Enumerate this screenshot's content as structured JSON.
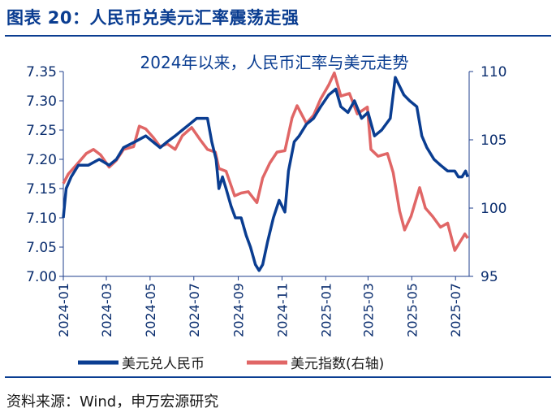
{
  "figure": {
    "title": "图表 20：人民币兑美元汇率震荡走强",
    "source": "资料来源：Wind，申万宏源研究"
  },
  "chart_data": {
    "type": "line",
    "title": "2024年以来，人民币汇率与美元走势",
    "x_ticks": [
      "2024-01",
      "2024-03",
      "2024-05",
      "2024-07",
      "2024-09",
      "2024-11",
      "2025-01",
      "2025-03",
      "2025-05",
      "2025-07"
    ],
    "x_range": [
      "2024-01-01",
      "2025-07-20"
    ],
    "y_left": {
      "range": [
        7.0,
        7.35
      ],
      "ticks": [
        "7.00",
        "7.05",
        "7.10",
        "7.15",
        "7.20",
        "7.25",
        "7.30",
        "7.35"
      ]
    },
    "y_right": {
      "range": [
        95,
        110
      ],
      "ticks": [
        "95",
        "100",
        "105",
        "110"
      ]
    },
    "grid": false,
    "legend_placement": "bottom",
    "series": [
      {
        "name": "美元兑人民币",
        "axis": "left",
        "color": "#0a3d91",
        "points": [
          [
            "2024-01-01",
            7.1
          ],
          [
            "2024-01-05",
            7.15
          ],
          [
            "2024-01-12",
            7.17
          ],
          [
            "2024-01-22",
            7.19
          ],
          [
            "2024-02-05",
            7.19
          ],
          [
            "2024-02-20",
            7.2
          ],
          [
            "2024-03-05",
            7.19
          ],
          [
            "2024-03-15",
            7.2
          ],
          [
            "2024-03-25",
            7.22
          ],
          [
            "2024-04-10",
            7.23
          ],
          [
            "2024-04-25",
            7.24
          ],
          [
            "2024-05-05",
            7.23
          ],
          [
            "2024-05-15",
            7.22
          ],
          [
            "2024-05-25",
            7.23
          ],
          [
            "2024-06-05",
            7.24
          ],
          [
            "2024-06-15",
            7.25
          ],
          [
            "2024-06-25",
            7.26
          ],
          [
            "2024-07-05",
            7.27
          ],
          [
            "2024-07-12",
            7.27
          ],
          [
            "2024-07-20",
            7.27
          ],
          [
            "2024-07-26",
            7.23
          ],
          [
            "2024-08-01",
            7.2
          ],
          [
            "2024-08-05",
            7.15
          ],
          [
            "2024-08-10",
            7.17
          ],
          [
            "2024-08-15",
            7.15
          ],
          [
            "2024-08-22",
            7.12
          ],
          [
            "2024-08-28",
            7.1
          ],
          [
            "2024-09-05",
            7.1
          ],
          [
            "2024-09-12",
            7.07
          ],
          [
            "2024-09-18",
            7.05
          ],
          [
            "2024-09-25",
            7.02
          ],
          [
            "2024-09-30",
            7.01
          ],
          [
            "2024-10-05",
            7.02
          ],
          [
            "2024-10-12",
            7.06
          ],
          [
            "2024-10-20",
            7.1
          ],
          [
            "2024-10-28",
            7.13
          ],
          [
            "2024-11-05",
            7.11
          ],
          [
            "2024-11-10",
            7.18
          ],
          [
            "2024-11-18",
            7.23
          ],
          [
            "2024-11-25",
            7.24
          ],
          [
            "2024-12-05",
            7.26
          ],
          [
            "2024-12-15",
            7.27
          ],
          [
            "2024-12-25",
            7.29
          ],
          [
            "2025-01-05",
            7.31
          ],
          [
            "2025-01-15",
            7.32
          ],
          [
            "2025-01-22",
            7.29
          ],
          [
            "2025-02-01",
            7.28
          ],
          [
            "2025-02-10",
            7.3
          ],
          [
            "2025-02-20",
            7.27
          ],
          [
            "2025-03-01",
            7.28
          ],
          [
            "2025-03-10",
            7.24
          ],
          [
            "2025-03-20",
            7.25
          ],
          [
            "2025-04-01",
            7.27
          ],
          [
            "2025-04-08",
            7.34
          ],
          [
            "2025-04-12",
            7.33
          ],
          [
            "2025-04-20",
            7.31
          ],
          [
            "2025-04-28",
            7.3
          ],
          [
            "2025-05-08",
            7.29
          ],
          [
            "2025-05-15",
            7.24
          ],
          [
            "2025-05-22",
            7.22
          ],
          [
            "2025-06-01",
            7.2
          ],
          [
            "2025-06-10",
            7.19
          ],
          [
            "2025-06-20",
            7.18
          ],
          [
            "2025-06-30",
            7.18
          ],
          [
            "2025-07-05",
            7.17
          ],
          [
            "2025-07-10",
            7.17
          ],
          [
            "2025-07-15",
            7.18
          ],
          [
            "2025-07-18",
            7.17
          ]
        ]
      },
      {
        "name": "美元指数(右轴)",
        "axis": "right",
        "color": "#e06666",
        "points": [
          [
            "2024-01-01",
            101.8
          ],
          [
            "2024-01-08",
            102.5
          ],
          [
            "2024-01-20",
            103.2
          ],
          [
            "2024-02-02",
            104.0
          ],
          [
            "2024-02-12",
            104.3
          ],
          [
            "2024-02-22",
            103.9
          ],
          [
            "2024-03-05",
            103.0
          ],
          [
            "2024-03-15",
            103.5
          ],
          [
            "2024-03-25",
            104.3
          ],
          [
            "2024-04-08",
            104.5
          ],
          [
            "2024-04-16",
            106.0
          ],
          [
            "2024-04-25",
            105.8
          ],
          [
            "2024-05-05",
            105.2
          ],
          [
            "2024-05-15",
            104.5
          ],
          [
            "2024-05-25",
            104.7
          ],
          [
            "2024-06-05",
            104.3
          ],
          [
            "2024-06-15",
            105.3
          ],
          [
            "2024-06-28",
            105.9
          ],
          [
            "2024-07-10",
            105.0
          ],
          [
            "2024-07-20",
            104.3
          ],
          [
            "2024-07-31",
            104.1
          ],
          [
            "2024-08-05",
            102.9
          ],
          [
            "2024-08-15",
            102.7
          ],
          [
            "2024-08-27",
            100.9
          ],
          [
            "2024-09-05",
            101.1
          ],
          [
            "2024-09-15",
            101.2
          ],
          [
            "2024-09-27",
            100.4
          ],
          [
            "2024-10-05",
            102.2
          ],
          [
            "2024-10-15",
            103.3
          ],
          [
            "2024-10-25",
            104.1
          ],
          [
            "2024-11-05",
            104.2
          ],
          [
            "2024-11-15",
            106.6
          ],
          [
            "2024-11-22",
            107.5
          ],
          [
            "2024-12-05",
            106.2
          ],
          [
            "2024-12-15",
            106.8
          ],
          [
            "2024-12-25",
            108.0
          ],
          [
            "2025-01-05",
            109.0
          ],
          [
            "2025-01-13",
            109.9
          ],
          [
            "2025-01-22",
            108.2
          ],
          [
            "2025-02-03",
            108.4
          ],
          [
            "2025-02-14",
            106.9
          ],
          [
            "2025-02-28",
            107.4
          ],
          [
            "2025-03-05",
            104.3
          ],
          [
            "2025-03-15",
            103.8
          ],
          [
            "2025-03-28",
            104.0
          ],
          [
            "2025-04-05",
            102.6
          ],
          [
            "2025-04-14",
            99.8
          ],
          [
            "2025-04-21",
            98.4
          ],
          [
            "2025-04-30",
            99.4
          ],
          [
            "2025-05-12",
            101.5
          ],
          [
            "2025-05-20",
            100.0
          ],
          [
            "2025-05-30",
            99.4
          ],
          [
            "2025-06-10",
            98.6
          ],
          [
            "2025-06-20",
            98.9
          ],
          [
            "2025-06-30",
            96.9
          ],
          [
            "2025-07-07",
            97.5
          ],
          [
            "2025-07-14",
            98.1
          ],
          [
            "2025-07-18",
            97.8
          ]
        ]
      }
    ]
  }
}
